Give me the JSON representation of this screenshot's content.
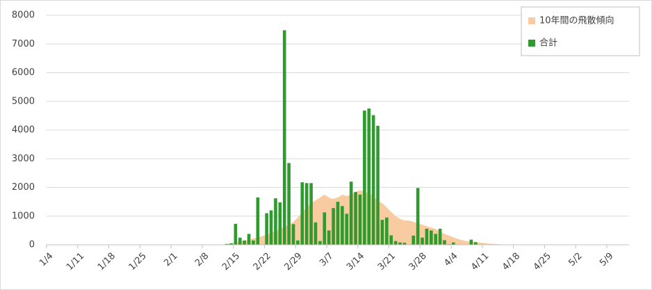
{
  "chart_data": {
    "type": "bar",
    "categories": [
      "1/4",
      null,
      null,
      null,
      null,
      null,
      null,
      "1/11",
      null,
      null,
      null,
      null,
      null,
      null,
      "1/18",
      null,
      null,
      null,
      null,
      null,
      null,
      "1/25",
      null,
      null,
      null,
      null,
      null,
      null,
      "2/1",
      null,
      null,
      null,
      null,
      null,
      null,
      "2/8",
      null,
      null,
      null,
      null,
      null,
      null,
      "2/15",
      null,
      null,
      null,
      null,
      null,
      null,
      "2/22",
      null,
      null,
      null,
      null,
      null,
      null,
      "2/29",
      null,
      null,
      null,
      null,
      null,
      null,
      "3/7",
      null,
      null,
      null,
      null,
      null,
      null,
      "3/14",
      null,
      null,
      null,
      null,
      null,
      null,
      "3/21",
      null,
      null,
      null,
      null,
      null,
      null,
      "3/28",
      null,
      null,
      null,
      null,
      null,
      null,
      "4/4",
      null,
      null,
      null,
      null,
      null,
      null,
      "4/11",
      null,
      null,
      null,
      null,
      null,
      null,
      "4/18",
      null,
      null,
      null,
      null,
      null,
      null,
      "4/25",
      null,
      null,
      null,
      null,
      null,
      null,
      "5/2",
      null,
      null,
      null,
      null,
      null,
      null,
      "5/9",
      null,
      null,
      null,
      null
    ],
    "series": [
      {
        "name": "10年間の飛散傾向",
        "type": "area",
        "color": "#f8cba0",
        "values": [
          0,
          0,
          0,
          0,
          0,
          0,
          0,
          0,
          0,
          0,
          0,
          0,
          0,
          0,
          0,
          0,
          0,
          0,
          0,
          0,
          0,
          0,
          0,
          0,
          0,
          0,
          0,
          0,
          0,
          0,
          0,
          0,
          0,
          0,
          0,
          0,
          0,
          0,
          0,
          0,
          20,
          50,
          80,
          120,
          150,
          180,
          220,
          260,
          300,
          350,
          420,
          480,
          550,
          620,
          700,
          800,
          950,
          1150,
          1300,
          1450,
          1550,
          1650,
          1750,
          1650,
          1600,
          1650,
          1750,
          1700,
          1750,
          1850,
          1900,
          1850,
          1800,
          1700,
          1550,
          1450,
          1300,
          1150,
          1000,
          900,
          850,
          850,
          800,
          750,
          700,
          650,
          600,
          550,
          450,
          380,
          320,
          260,
          200,
          160,
          130,
          110,
          100,
          80,
          60,
          40,
          30,
          20,
          10,
          0,
          0,
          0,
          0,
          0,
          0,
          0,
          0,
          0,
          0,
          0,
          0,
          0,
          0,
          0,
          0,
          0,
          0,
          0,
          0,
          0,
          0,
          0,
          0,
          0,
          0,
          0,
          0
        ]
      },
      {
        "name": "合計",
        "type": "bar",
        "color": "#2e9b2e",
        "values": [
          0,
          0,
          0,
          0,
          0,
          0,
          0,
          0,
          0,
          0,
          0,
          0,
          0,
          0,
          0,
          0,
          0,
          0,
          0,
          0,
          0,
          0,
          0,
          0,
          0,
          0,
          0,
          0,
          0,
          0,
          0,
          0,
          0,
          0,
          0,
          0,
          0,
          0,
          0,
          0,
          30,
          50,
          730,
          250,
          150,
          380,
          150,
          1650,
          0,
          1100,
          1200,
          1620,
          1480,
          7480,
          2850,
          720,
          150,
          2180,
          2150,
          2150,
          780,
          130,
          1130,
          500,
          1280,
          1500,
          1350,
          1080,
          2200,
          1840,
          1750,
          4680,
          4750,
          4520,
          4150,
          870,
          950,
          330,
          130,
          80,
          70,
          0,
          320,
          1980,
          250,
          560,
          500,
          380,
          560,
          160,
          20,
          80,
          0,
          0,
          0,
          180,
          90,
          0,
          0,
          0,
          0,
          0,
          0,
          0,
          0,
          0,
          0,
          0,
          0,
          0,
          0,
          0,
          0,
          0,
          0,
          0,
          0,
          0,
          0,
          0,
          0,
          0,
          0,
          0,
          0,
          0,
          0,
          0,
          0,
          0,
          0
        ]
      }
    ],
    "ylim": [
      0,
      8000
    ],
    "yticks": [
      0,
      1000,
      2000,
      3000,
      4000,
      5000,
      6000,
      7000,
      8000
    ],
    "grid": true,
    "legend": "top-right"
  }
}
